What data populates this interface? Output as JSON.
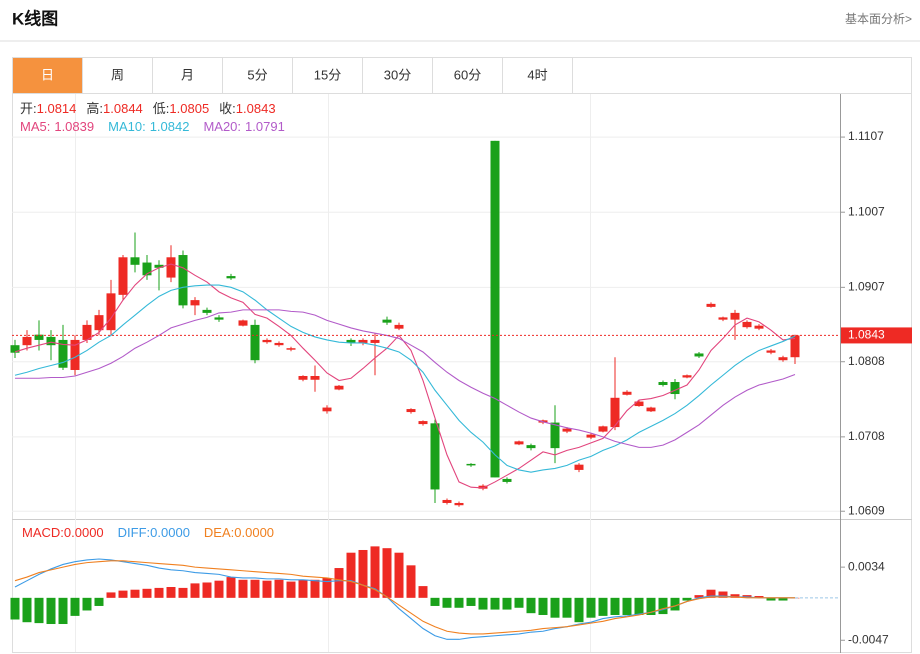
{
  "header": {
    "title": "K线图",
    "link": "基本面分析>"
  },
  "tabs": [
    "日",
    "周",
    "月",
    "5分",
    "15分",
    "30分",
    "60分",
    "4时"
  ],
  "active_tab": 0,
  "chart_data": [
    {
      "type": "candlestick",
      "ohlc_labels": [
        "开:",
        "高:",
        "低:",
        "收:"
      ],
      "up_color": "#ee2a24",
      "down_color": "#1aa11a",
      "open": [
        1.083,
        1.083,
        1.0844,
        1.0841,
        1.0837,
        1.0797,
        1.0837,
        1.085,
        1.085,
        1.0897,
        1.0947,
        1.094,
        1.0937,
        1.092,
        1.095,
        1.0883,
        1.0877,
        1.0867,
        1.0922,
        1.0856,
        1.0857,
        1.0834,
        1.083,
        1.0824,
        1.0784,
        1.0784,
        1.0742,
        1.0771,
        1.0837,
        1.0833,
        1.0833,
        1.0864,
        1.0852,
        1.0741,
        1.0725,
        1.0726,
        1.062,
        1.0617,
        1.0672,
        1.0639,
        1.1102,
        1.0652,
        1.0698,
        1.0697,
        1.0727,
        1.0727,
        1.0715,
        1.0664,
        1.0707,
        1.0715,
        1.0721,
        1.0764,
        1.0749,
        1.0742,
        1.0781,
        1.0781,
        1.0787,
        1.0819,
        1.0881,
        1.0864,
        1.0864,
        1.0854,
        1.0852,
        1.082,
        1.081,
        1.0814
      ],
      "high": [
        1.0837,
        1.085,
        1.0863,
        1.085,
        1.0857,
        1.0843,
        1.0863,
        1.0877,
        1.0917,
        1.095,
        1.098,
        1.095,
        1.0943,
        1.0963,
        1.0956,
        1.0894,
        1.088,
        1.087,
        1.0925,
        1.0864,
        1.0864,
        1.0839,
        1.0835,
        1.0828,
        1.079,
        1.0803,
        1.075,
        1.0777,
        1.0839,
        1.0839,
        1.0846,
        1.0868,
        1.086,
        1.0746,
        1.073,
        1.0731,
        1.0626,
        1.0622,
        1.0673,
        1.0645,
        1.1102,
        1.0654,
        1.0703,
        1.0699,
        1.0731,
        1.075,
        1.0721,
        1.0673,
        1.0713,
        1.0723,
        1.0814,
        1.077,
        1.0757,
        1.0748,
        1.0783,
        1.0785,
        1.0791,
        1.0821,
        1.0887,
        1.0868,
        1.0877,
        1.0863,
        1.0858,
        1.0825,
        1.0816,
        1.0844
      ],
      "low": [
        1.0813,
        1.0823,
        1.0823,
        1.081,
        1.0797,
        1.079,
        1.0833,
        1.0843,
        1.0843,
        1.089,
        1.0927,
        1.0917,
        1.0903,
        1.0914,
        1.0879,
        1.087,
        1.087,
        1.0861,
        1.0917,
        1.0855,
        1.0806,
        1.0832,
        1.0828,
        1.0822,
        1.0782,
        1.0768,
        1.0739,
        1.077,
        1.0829,
        1.083,
        1.079,
        1.0857,
        1.085,
        1.0739,
        1.0723,
        1.062,
        1.0618,
        1.0615,
        1.0668,
        1.0637,
        1.0654,
        1.0646,
        1.0697,
        1.069,
        1.0725,
        1.0673,
        1.0713,
        1.0661,
        1.0705,
        1.0714,
        1.0717,
        1.0763,
        1.0748,
        1.0741,
        1.0775,
        1.0758,
        1.0786,
        1.0813,
        1.088,
        1.0862,
        1.0837,
        1.0852,
        1.085,
        1.0818,
        1.0808,
        1.0805
      ],
      "close": [
        1.082,
        1.0841,
        1.0837,
        1.083,
        1.08,
        1.0837,
        1.0857,
        1.087,
        1.0899,
        1.0947,
        1.0937,
        1.0923,
        1.0933,
        1.0947,
        1.0883,
        1.089,
        1.0873,
        1.0864,
        1.0919,
        1.0863,
        1.081,
        1.0837,
        1.0833,
        1.0826,
        1.0789,
        1.0789,
        1.0747,
        1.0776,
        1.0833,
        1.0837,
        1.0837,
        1.086,
        1.0857,
        1.0745,
        1.0729,
        1.0638,
        1.0624,
        1.062,
        1.067,
        1.0643,
        1.0654,
        1.0648,
        1.0702,
        1.0693,
        1.073,
        1.0693,
        1.0719,
        1.0671,
        1.0711,
        1.0722,
        1.076,
        1.0768,
        1.0755,
        1.0747,
        1.0777,
        1.0765,
        1.079,
        1.0815,
        1.0885,
        1.0867,
        1.0873,
        1.0861,
        1.0856,
        1.0823,
        1.0814,
        1.0843
      ],
      "series": [
        {
          "name": "MA5:",
          "color": "#e2457d",
          "values": [
            1.0821,
            1.0826,
            1.083,
            1.0834,
            1.0831,
            1.083,
            1.0837,
            1.0847,
            1.0866,
            1.089,
            1.091,
            1.0925,
            1.0933,
            1.0938,
            1.0933,
            1.0923,
            1.0914,
            1.0901,
            1.0893,
            1.0887,
            1.0871,
            1.0866,
            1.0855,
            1.0843,
            1.0826,
            1.081,
            1.0793,
            1.0783,
            1.0786,
            1.0799,
            1.0813,
            1.0826,
            1.0843,
            1.0823,
            1.0783,
            1.0733,
            1.0684,
            1.0648,
            1.0641,
            1.064,
            1.0648,
            1.0657,
            1.0666,
            1.0677,
            1.0688,
            1.0684,
            1.069,
            1.0694,
            1.07,
            1.0706,
            1.0723,
            1.0743,
            1.0757,
            1.0759,
            1.0763,
            1.077,
            1.0777,
            1.0797,
            1.0823,
            1.0839,
            1.0857,
            1.0866,
            1.0861,
            1.085,
            1.0837,
            1.0839
          ]
        },
        {
          "name": "MA10:",
          "color": "#35b9d8",
          "values": [
            1.079,
            1.0794,
            1.0799,
            1.0803,
            1.0807,
            1.0814,
            1.0823,
            1.0834,
            1.0843,
            1.0857,
            1.087,
            1.0883,
            1.0895,
            1.0903,
            1.0907,
            1.0909,
            1.091,
            1.091,
            1.0907,
            1.0901,
            1.089,
            1.0877,
            1.0866,
            1.0855,
            1.0847,
            1.0841,
            1.0837,
            1.0834,
            1.0833,
            1.0833,
            1.083,
            1.0826,
            1.0821,
            1.081,
            1.0794,
            1.077,
            1.075,
            1.073,
            1.0714,
            1.0701,
            1.0684,
            1.067,
            1.0664,
            1.0661,
            1.0664,
            1.0666,
            1.067,
            1.0677,
            1.0682,
            1.069,
            1.0696,
            1.0704,
            1.0714,
            1.0722,
            1.073,
            1.0739,
            1.075,
            1.0763,
            1.0777,
            1.079,
            1.0803,
            1.0814,
            1.0823,
            1.0829,
            1.0835,
            1.0842
          ]
        },
        {
          "name": "MA20:",
          "color": "#b25bc9",
          "values": [
            1.0786,
            1.0786,
            1.0786,
            1.0787,
            1.0787,
            1.0789,
            1.0794,
            1.0799,
            1.0806,
            1.0815,
            1.0826,
            1.0834,
            1.0843,
            1.0853,
            1.0858,
            1.0863,
            1.0867,
            1.0873,
            1.0874,
            1.0877,
            1.0877,
            1.0877,
            1.0877,
            1.0875,
            1.0874,
            1.087,
            1.0863,
            1.0858,
            1.0853,
            1.0849,
            1.0846,
            1.0843,
            1.0839,
            1.083,
            1.0821,
            1.0807,
            1.0794,
            1.0783,
            1.0774,
            1.0766,
            1.0759,
            1.075,
            1.0741,
            1.0733,
            1.0728,
            1.0724,
            1.072,
            1.0717,
            1.0713,
            1.0708,
            1.0702,
            1.0698,
            1.0694,
            1.0694,
            1.0697,
            1.0704,
            1.0714,
            1.0724,
            1.0737,
            1.075,
            1.0761,
            1.077,
            1.0777,
            1.0781,
            1.0785,
            1.0791
          ]
        }
      ],
      "ylim": [
        1.06,
        1.1163
      ],
      "yticks": [
        1.0609,
        1.0708,
        1.0808,
        1.0907,
        1.1007,
        1.1107
      ],
      "grid": true
    },
    {
      "type": "macd",
      "name": "MACD:",
      "up_color": "#ee2a24",
      "down_color": "#1aa11a",
      "values": [
        -0.0024,
        -0.0027,
        -0.0028,
        -0.0029,
        -0.0029,
        -0.002,
        -0.0014,
        -0.0009,
        0.0006,
        0.0008,
        0.0009,
        0.001,
        0.0011,
        0.0012,
        0.0011,
        0.0016,
        0.0017,
        0.0019,
        0.0023,
        0.002,
        0.002,
        0.0019,
        0.002,
        0.0018,
        0.002,
        0.002,
        0.0022,
        0.0033,
        0.005,
        0.0053,
        0.0057,
        0.0055,
        0.005,
        0.0036,
        0.0013,
        -0.0009,
        -0.0011,
        -0.0011,
        -0.0009,
        -0.0013,
        -0.0013,
        -0.0013,
        -0.0011,
        -0.0017,
        -0.0019,
        -0.0022,
        -0.0022,
        -0.0027,
        -0.0022,
        -0.002,
        -0.0019,
        -0.0019,
        -0.0019,
        -0.0019,
        -0.0018,
        -0.0014,
        -0.0003,
        0.0003,
        0.0009,
        0.0007,
        0.0004,
        0.0003,
        0.0002,
        -0.0003,
        -0.0003,
        0
      ],
      "series": [
        {
          "name": "DIFF:",
          "color": "#3c9be6",
          "values": [
            0.0012,
            0.0019,
            0.0026,
            0.0032,
            0.0037,
            0.004,
            0.0042,
            0.0043,
            0.0042,
            0.004,
            0.0038,
            0.0036,
            0.0033,
            0.0031,
            0.003,
            0.0028,
            0.0027,
            0.0026,
            0.0023,
            0.0022,
            0.0022,
            0.0021,
            0.0021,
            0.002,
            0.002,
            0.0019,
            0.0018,
            0.0019,
            0.0019,
            0.0014,
            0.001,
            0.0001,
            -0.0012,
            -0.0023,
            -0.0034,
            -0.0042,
            -0.0046,
            -0.0046,
            -0.0044,
            -0.0043,
            -0.0042,
            -0.0041,
            -0.004,
            -0.0038,
            -0.0037,
            -0.0034,
            -0.0032,
            -0.0029,
            -0.0027,
            -0.0023,
            -0.0021,
            -0.002,
            -0.0018,
            -0.0016,
            -0.0013,
            -0.0009,
            -0.0004,
            0,
            0.0002,
            0.0002,
            0.0001,
            0.0001,
            0,
            0,
            0,
            0
          ]
        },
        {
          "name": "DEA:",
          "color": "#f08020",
          "values": [
            0.0019,
            0.0023,
            0.0028,
            0.0031,
            0.0034,
            0.0037,
            0.0039,
            0.004,
            0.0041,
            0.0041,
            0.004,
            0.0039,
            0.0038,
            0.0037,
            0.0036,
            0.0034,
            0.0033,
            0.0032,
            0.0031,
            0.003,
            0.0029,
            0.0028,
            0.0027,
            0.0026,
            0.0024,
            0.0023,
            0.0022,
            0.002,
            0.0018,
            0.0014,
            0.0009,
            0.0001,
            -0.0008,
            -0.0017,
            -0.0026,
            -0.0032,
            -0.0037,
            -0.0039,
            -0.004,
            -0.004,
            -0.0039,
            -0.0038,
            -0.0037,
            -0.0036,
            -0.0034,
            -0.0033,
            -0.0032,
            -0.003,
            -0.0028,
            -0.0026,
            -0.0023,
            -0.0021,
            -0.0019,
            -0.0016,
            -0.0012,
            -0.0009,
            -0.0004,
            -0.0001,
            0.0001,
            0.0001,
            0.0001,
            0,
            0,
            0,
            0,
            0
          ]
        }
      ],
      "legend_values": [
        {
          "value": 0,
          "label": "0.0000"
        },
        {
          "value": 0,
          "label": "0.0000"
        },
        {
          "value": 0,
          "label": "0.0000"
        }
      ],
      "ylim": [
        -0.006,
        0.0084
      ],
      "yticks": [
        -0.0047,
        0.0034
      ]
    }
  ]
}
